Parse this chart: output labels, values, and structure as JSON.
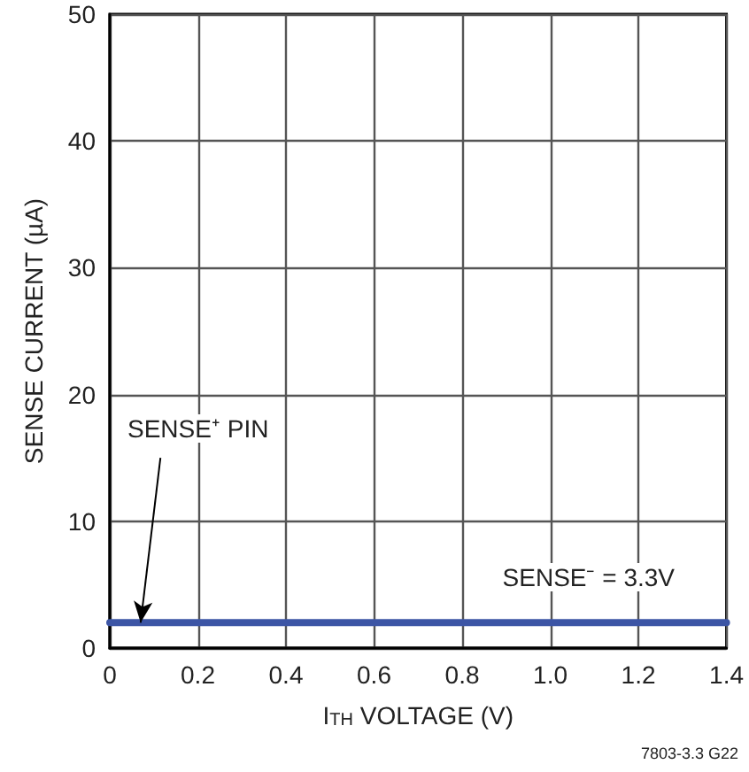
{
  "chart_data": {
    "type": "line",
    "xlabel": "I$_{TH}$ VOLTAGE (V)",
    "ylabel": "SENSE CURRENT (µA)",
    "x": [
      0,
      1.4
    ],
    "series": [
      {
        "color": "#3c55a5",
        "values": [
          2,
          2
        ]
      }
    ],
    "xlim": [
      0,
      1.4
    ],
    "xticks": [
      0,
      {
        "value": 0.2,
        "label": "0.2"
      },
      {
        "value": 0.4,
        "label": "0.4"
      },
      {
        "value": 0.6,
        "label": "0.6"
      },
      {
        "value": 0.8,
        "label": "0.8"
      },
      {
        "value": 1.0,
        "label": "1.0"
      },
      {
        "value": 1.2,
        "label": "1.2"
      },
      {
        "value": 1.4,
        "label": "1.4"
      }
    ],
    "ylim": [
      0,
      50
    ],
    "yticks": [
      0,
      10,
      20,
      30,
      40,
      50
    ],
    "grid": true,
    "marker": "none",
    "line_style": "solid",
    "annotations": [
      {
        "text": "SENSE⁺ PIN",
        "x": 0.07,
        "y": 2
      },
      "SENSE⁻ = 3.3V",
      "7803-3.3 G22"
    ]
  }
}
